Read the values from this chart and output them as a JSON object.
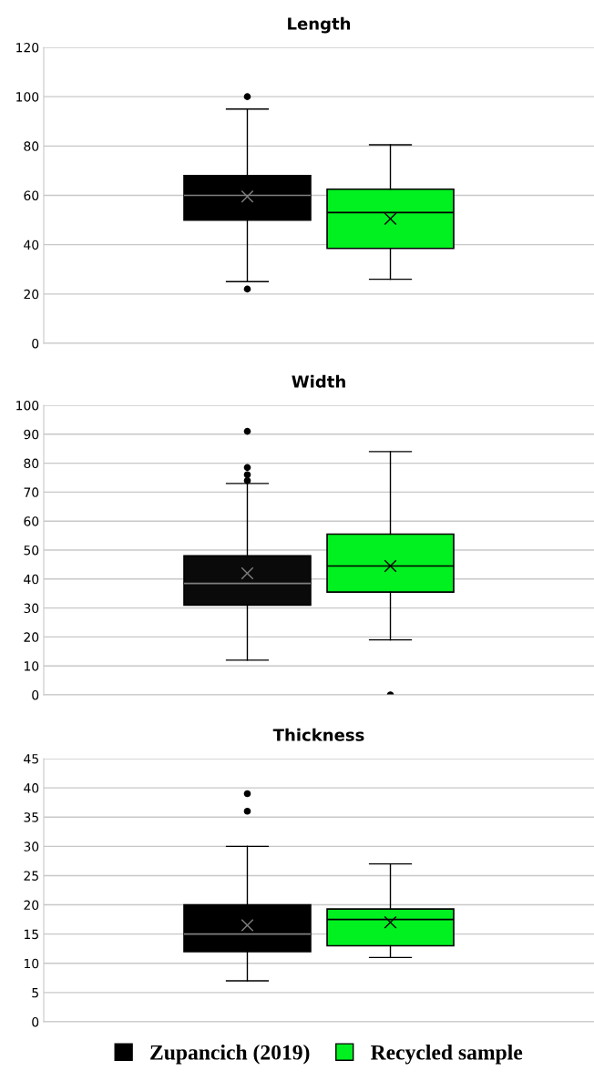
{
  "chart_data": [
    {
      "type": "box",
      "title": "Length",
      "categories": [
        null
      ],
      "ylim": [
        0,
        120
      ],
      "yticks": [
        0,
        20,
        40,
        60,
        80,
        100,
        120
      ],
      "grid": "y",
      "legend": false,
      "series": [
        {
          "color": "#000000",
          "boxes": [
            {
              "low": 25,
              "q1": 50,
              "median": 60,
              "q3": 68,
              "high": 95,
              "mean": 59.5,
              "outliers": [
                100,
                22
              ]
            }
          ]
        },
        {
          "color": "#00f020",
          "boxes": [
            {
              "low": 26,
              "q1": 38.5,
              "median": 53,
              "q3": 62.5,
              "high": 80.5,
              "mean": 50.5
            }
          ]
        }
      ]
    },
    {
      "type": "box",
      "title": "Width",
      "categories": [
        null
      ],
      "ylim": [
        0,
        100
      ],
      "yticks": [
        0,
        10,
        20,
        30,
        40,
        50,
        60,
        70,
        80,
        90,
        100
      ],
      "grid": "y",
      "legend": false,
      "series": [
        {
          "color": "#0a0a0a",
          "boxes": [
            {
              "low": 12,
              "q1": 31,
              "median": 38.5,
              "q3": 48,
              "high": 73,
              "mean": 42,
              "outliers": [
                74,
                76,
                78.5,
                91
              ]
            }
          ]
        },
        {
          "color": "#00f020",
          "boxes": [
            {
              "low": 19,
              "q1": 35.5,
              "median": 44.5,
              "q3": 55.5,
              "high": 84,
              "mean": 44.5,
              "outliers": [
                0
              ]
            }
          ]
        }
      ]
    },
    {
      "type": "box",
      "title": "Thickness",
      "categories": [
        null
      ],
      "ylim": [
        0,
        45
      ],
      "yticks": [
        0,
        5,
        10,
        15,
        20,
        25,
        30,
        35,
        40,
        45
      ],
      "grid": "y",
      "legend": "bottom",
      "series": [
        {
          "name": "Zupancich (2019)",
          "color": "#000000",
          "boxes": [
            {
              "low": 7,
              "q1": 12,
              "median": 15,
              "q3": 20,
              "high": 30,
              "mean": 16.5,
              "outliers": [
                36,
                39
              ]
            }
          ]
        },
        {
          "name": "Recycled sample",
          "color": "#00f020",
          "boxes": [
            {
              "low": 11,
              "q1": 13,
              "median": 17.5,
              "q3": 19.3,
              "high": 27,
              "mean": 17
            }
          ]
        }
      ]
    }
  ]
}
